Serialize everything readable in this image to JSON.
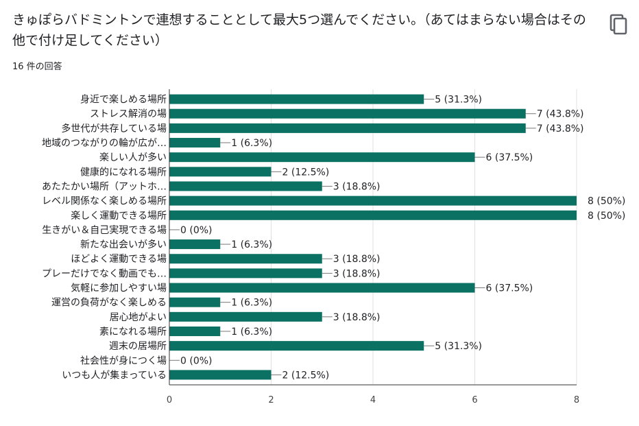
{
  "question": {
    "title": "きゅぽらバドミントンで連想することとして最大5つ選んでください。（あてはまらない場合はその他で付け足してください）",
    "response_count": "16 件の回答",
    "copy_icon": "copy-icon"
  },
  "colors": {
    "bar": "#0b7163",
    "grid": "#e0e0e0",
    "axis": "#333333"
  },
  "chart_data": {
    "type": "bar",
    "orientation": "horizontal",
    "categories": [
      "身近で楽しめる場所",
      "ストレス解消の場",
      "多世代が共存している場",
      "地域のつながりの輪が広が…",
      "楽しい人が多い",
      "健康的になれる場所",
      "あたたかい場所（アットホ…",
      "レベル関係なく楽しめる場所",
      "楽しく運動できる場所",
      "生きがい＆自己実現できる場",
      "新たな出会いが多い",
      "ほどよく運動できる場",
      "プレーだけでなく動画でも…",
      "気軽に参加しやすい場",
      "運営の負荷がなく楽しめる",
      "居心地がよい",
      "素になれる場所",
      "週末の居場所",
      "社会性が身につく場",
      "いつも人が集まっている"
    ],
    "values": [
      5,
      7,
      7,
      1,
      6,
      2,
      3,
      8,
      8,
      0,
      1,
      3,
      3,
      6,
      1,
      3,
      1,
      5,
      0,
      2
    ],
    "value_labels": [
      "5 (31.3%)",
      "7 (43.8%)",
      "7 (43.8%)",
      "1 (6.3%)",
      "6 (37.5%)",
      "2 (12.5%)",
      "3 (18.8%)",
      "8 (50%)",
      "8 (50%)",
      "0 (0%)",
      "1 (6.3%)",
      "3 (18.8%)",
      "3 (18.8%)",
      "6 (37.5%)",
      "1 (6.3%)",
      "3 (18.8%)",
      "1 (6.3%)",
      "5 (31.3%)",
      "0 (0%)",
      "2 (12.5%)"
    ],
    "xticks": [
      "0",
      "2",
      "4",
      "6",
      "8"
    ],
    "xlim": [
      0,
      8
    ],
    "grid": true
  }
}
